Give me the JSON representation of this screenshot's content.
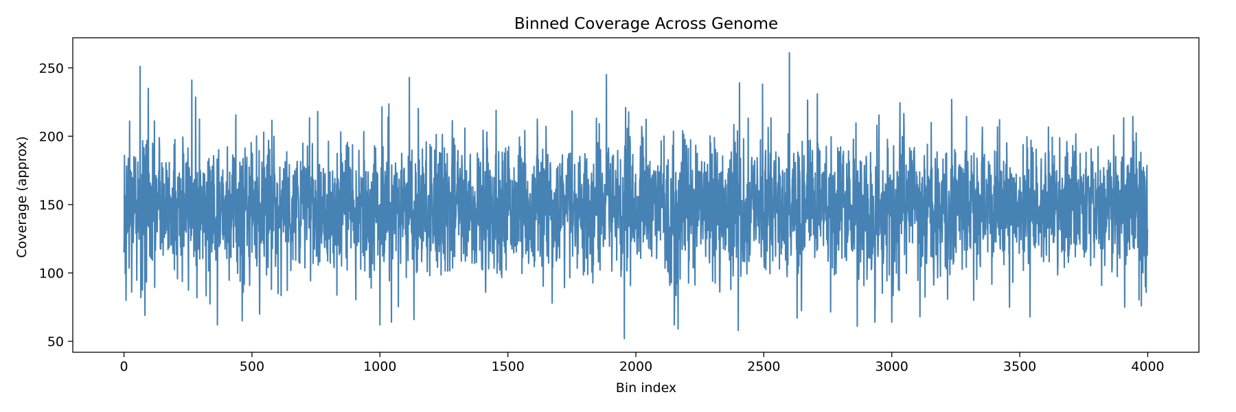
{
  "chart_data": {
    "type": "line",
    "title": "Binned Coverage Across Genome",
    "xlabel": "Bin index",
    "ylabel": "Coverage (approx)",
    "xlim": [
      -200,
      4200
    ],
    "ylim": [
      42,
      272
    ],
    "xticks": [
      0,
      500,
      1000,
      1500,
      2000,
      2500,
      3000,
      3500,
      4000
    ],
    "yticks": [
      50,
      100,
      150,
      200,
      250
    ],
    "grid": false,
    "legend": "none",
    "series": [
      {
        "color": "#4682b4",
        "x_start": 0,
        "x_step": 1,
        "count": 4000,
        "summary": {
          "mean": 148,
          "std": 25,
          "min": 52,
          "max": 261
        },
        "highlights": [
          {
            "x": 0,
            "y": 115
          },
          {
            "x": 2,
            "y": 186
          },
          {
            "x": 8,
            "y": 80
          },
          {
            "x": 22,
            "y": 211
          },
          {
            "x": 30,
            "y": 86
          },
          {
            "x": 63,
            "y": 251
          },
          {
            "x": 66,
            "y": 82
          },
          {
            "x": 82,
            "y": 69
          },
          {
            "x": 95,
            "y": 235
          },
          {
            "x": 265,
            "y": 241
          },
          {
            "x": 365,
            "y": 62
          },
          {
            "x": 462,
            "y": 65
          },
          {
            "x": 530,
            "y": 70
          },
          {
            "x": 1000,
            "y": 62
          },
          {
            "x": 1045,
            "y": 64
          },
          {
            "x": 1115,
            "y": 243
          },
          {
            "x": 1885,
            "y": 245
          },
          {
            "x": 1955,
            "y": 52
          },
          {
            "x": 2150,
            "y": 62
          },
          {
            "x": 2165,
            "y": 59
          },
          {
            "x": 2400,
            "y": 58
          },
          {
            "x": 2405,
            "y": 239
          },
          {
            "x": 2495,
            "y": 238
          },
          {
            "x": 2600,
            "y": 261
          },
          {
            "x": 2630,
            "y": 67
          },
          {
            "x": 2865,
            "y": 61
          },
          {
            "x": 3110,
            "y": 68
          },
          {
            "x": 3460,
            "y": 75
          },
          {
            "x": 3910,
            "y": 75
          },
          {
            "x": 3975,
            "y": 76
          },
          {
            "x": 3998,
            "y": 113
          }
        ]
      }
    ]
  }
}
